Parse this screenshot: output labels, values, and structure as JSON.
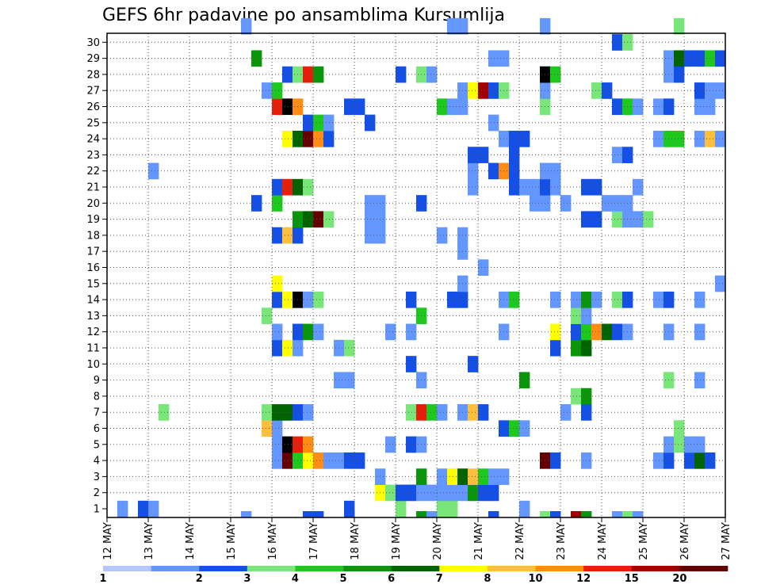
{
  "chart_data": {
    "type": "heatmap",
    "title": "GEFS 6hr padavine po ansamblima Kursumlija",
    "xlabel": "",
    "ylabel": "",
    "x_tick_labels": [
      "12 MAY",
      "13 MAY",
      "14 MAY",
      "15 MAY",
      "16 MAY",
      "17 MAY",
      "18 MAY",
      "19 MAY",
      "20 MAY",
      "21 MAY",
      "22 MAY",
      "23 MAY",
      "24 MAY",
      "25 MAY",
      "26 MAY",
      "27 MAY"
    ],
    "y_tick_labels": [
      "1",
      "2",
      "3",
      "4",
      "5",
      "6",
      "7",
      "8",
      "9",
      "10",
      "11",
      "12",
      "13",
      "14",
      "15",
      "16",
      "17",
      "18",
      "19",
      "20",
      "21",
      "22",
      "23",
      "24",
      "25",
      "26",
      "27",
      "28",
      "29",
      "30"
    ],
    "x_steps_per_day": 4,
    "xlim_steps": [
      0,
      60
    ],
    "ylim_members": [
      0,
      30
    ],
    "colorbar": {
      "levels": [
        "1",
        "2",
        "3",
        "4",
        "5",
        "6",
        "7",
        "8",
        "10",
        "12",
        "15",
        "20"
      ],
      "colors": [
        "#b4c8ff",
        "#6496ff",
        "#1450e6",
        "#78e678",
        "#1ec81e",
        "#0a960a",
        "#006400",
        "#ffff00",
        "#ffbe3c",
        "#ff8c14",
        "#e61e0a",
        "#a00000",
        "#640000"
      ]
    },
    "cells": [
      [
        1,
        0,
        1
      ],
      [
        3,
        0,
        2
      ],
      [
        4,
        0,
        1
      ],
      [
        23,
        0,
        2
      ],
      [
        28,
        0,
        3
      ],
      [
        32,
        0,
        3
      ],
      [
        33,
        0,
        3
      ],
      [
        40,
        0,
        1
      ],
      [
        26,
        1,
        7
      ],
      [
        27,
        1,
        3
      ],
      [
        28,
        1,
        2
      ],
      [
        29,
        1,
        2
      ],
      [
        30,
        1,
        1
      ],
      [
        31,
        1,
        1
      ],
      [
        32,
        1,
        1
      ],
      [
        33,
        1,
        1
      ],
      [
        34,
        1,
        1
      ],
      [
        35,
        1,
        5
      ],
      [
        36,
        1,
        2
      ],
      [
        37,
        1,
        2
      ],
      [
        26,
        2,
        1
      ],
      [
        30,
        2,
        5
      ],
      [
        32,
        2,
        1
      ],
      [
        33,
        2,
        7
      ],
      [
        34,
        2,
        6
      ],
      [
        35,
        2,
        8
      ],
      [
        36,
        2,
        4
      ],
      [
        37,
        2,
        1
      ],
      [
        38,
        2,
        1
      ],
      [
        16,
        3,
        1
      ],
      [
        17,
        3,
        12
      ],
      [
        18,
        3,
        4
      ],
      [
        19,
        3,
        7
      ],
      [
        20,
        3,
        9
      ],
      [
        21,
        3,
        1
      ],
      [
        22,
        3,
        1
      ],
      [
        23,
        3,
        2
      ],
      [
        24,
        3,
        2
      ],
      [
        42,
        3,
        12
      ],
      [
        43,
        3,
        2
      ],
      [
        46,
        3,
        1
      ],
      [
        53,
        3,
        1
      ],
      [
        54,
        3,
        2
      ],
      [
        56,
        3,
        2
      ],
      [
        57,
        3,
        6
      ],
      [
        58,
        3,
        2
      ],
      [
        16,
        4,
        1
      ],
      [
        17,
        4,
        13
      ],
      [
        18,
        4,
        10
      ],
      [
        19,
        4,
        9
      ],
      [
        27,
        4,
        1
      ],
      [
        29,
        4,
        2
      ],
      [
        30,
        4,
        1
      ],
      [
        54,
        4,
        1
      ],
      [
        55,
        4,
        3
      ],
      [
        56,
        4,
        1
      ],
      [
        57,
        4,
        1
      ],
      [
        15,
        5,
        8
      ],
      [
        16,
        5,
        1
      ],
      [
        38,
        5,
        2
      ],
      [
        39,
        5,
        4
      ],
      [
        40,
        5,
        1
      ],
      [
        55,
        5,
        3
      ],
      [
        5,
        6,
        3
      ],
      [
        15,
        6,
        3
      ],
      [
        16,
        6,
        6
      ],
      [
        17,
        6,
        6
      ],
      [
        18,
        6,
        2
      ],
      [
        19,
        6,
        1
      ],
      [
        29,
        6,
        3
      ],
      [
        30,
        6,
        10
      ],
      [
        31,
        6,
        4
      ],
      [
        32,
        6,
        1
      ],
      [
        34,
        6,
        1
      ],
      [
        35,
        6,
        8
      ],
      [
        36,
        6,
        2
      ],
      [
        44,
        6,
        1
      ],
      [
        46,
        6,
        2
      ],
      [
        45,
        7,
        3
      ],
      [
        46,
        7,
        5
      ],
      [
        22,
        8,
        1
      ],
      [
        23,
        8,
        1
      ],
      [
        30,
        8,
        1
      ],
      [
        40,
        8,
        5
      ],
      [
        54,
        8,
        3
      ],
      [
        57,
        8,
        1
      ],
      [
        29,
        9,
        2
      ],
      [
        35,
        9,
        2
      ],
      [
        16,
        10,
        2
      ],
      [
        17,
        10,
        7
      ],
      [
        18,
        10,
        1
      ],
      [
        22,
        10,
        1
      ],
      [
        23,
        10,
        3
      ],
      [
        43,
        10,
        2
      ],
      [
        45,
        10,
        5
      ],
      [
        46,
        10,
        6
      ],
      [
        16,
        11,
        1
      ],
      [
        18,
        11,
        2
      ],
      [
        19,
        11,
        5
      ],
      [
        20,
        11,
        1
      ],
      [
        27,
        11,
        1
      ],
      [
        29,
        11,
        1
      ],
      [
        38,
        11,
        1
      ],
      [
        43,
        11,
        7
      ],
      [
        45,
        11,
        2
      ],
      [
        46,
        11,
        4
      ],
      [
        47,
        11,
        9
      ],
      [
        48,
        11,
        6
      ],
      [
        49,
        11,
        2
      ],
      [
        50,
        11,
        1
      ],
      [
        54,
        11,
        1
      ],
      [
        57,
        11,
        1
      ],
      [
        15,
        12,
        3
      ],
      [
        30,
        12,
        4
      ],
      [
        45,
        12,
        3
      ],
      [
        46,
        12,
        1
      ],
      [
        16,
        13,
        2
      ],
      [
        17,
        13,
        7
      ],
      [
        18,
        13,
        13
      ],
      [
        19,
        13,
        1
      ],
      [
        20,
        13,
        3
      ],
      [
        29,
        13,
        2
      ],
      [
        33,
        13,
        2
      ],
      [
        34,
        13,
        2
      ],
      [
        38,
        13,
        1
      ],
      [
        39,
        13,
        4
      ],
      [
        43,
        13,
        1
      ],
      [
        45,
        13,
        1
      ],
      [
        46,
        13,
        5
      ],
      [
        47,
        13,
        1
      ],
      [
        49,
        13,
        3
      ],
      [
        50,
        13,
        2
      ],
      [
        53,
        13,
        1
      ],
      [
        54,
        13,
        2
      ],
      [
        57,
        13,
        1
      ],
      [
        16,
        14,
        7
      ],
      [
        34,
        14,
        1
      ],
      [
        59,
        14,
        1
      ],
      [
        36,
        15,
        1
      ],
      [
        34,
        16,
        1
      ],
      [
        16,
        17,
        2
      ],
      [
        17,
        17,
        8
      ],
      [
        18,
        17,
        2
      ],
      [
        25,
        17,
        1
      ],
      [
        26,
        17,
        1
      ],
      [
        32,
        17,
        1
      ],
      [
        34,
        17,
        1
      ],
      [
        18,
        18,
        5
      ],
      [
        19,
        18,
        6
      ],
      [
        20,
        18,
        12
      ],
      [
        21,
        18,
        3
      ],
      [
        25,
        18,
        1
      ],
      [
        26,
        18,
        1
      ],
      [
        46,
        18,
        2
      ],
      [
        47,
        18,
        2
      ],
      [
        49,
        18,
        3
      ],
      [
        50,
        18,
        1
      ],
      [
        51,
        18,
        1
      ],
      [
        52,
        18,
        3
      ],
      [
        14,
        19,
        2
      ],
      [
        16,
        19,
        4
      ],
      [
        25,
        19,
        1
      ],
      [
        26,
        19,
        1
      ],
      [
        30,
        19,
        2
      ],
      [
        41,
        19,
        1
      ],
      [
        42,
        19,
        1
      ],
      [
        44,
        19,
        1
      ],
      [
        48,
        19,
        1
      ],
      [
        49,
        19,
        1
      ],
      [
        50,
        19,
        1
      ],
      [
        16,
        20,
        2
      ],
      [
        17,
        20,
        10
      ],
      [
        18,
        20,
        6
      ],
      [
        19,
        20,
        3
      ],
      [
        35,
        20,
        1
      ],
      [
        39,
        20,
        2
      ],
      [
        40,
        20,
        1
      ],
      [
        41,
        20,
        1
      ],
      [
        42,
        20,
        2
      ],
      [
        43,
        20,
        1
      ],
      [
        46,
        20,
        2
      ],
      [
        47,
        20,
        2
      ],
      [
        51,
        20,
        1
      ],
      [
        4,
        21,
        1
      ],
      [
        35,
        21,
        1
      ],
      [
        37,
        21,
        2
      ],
      [
        38,
        21,
        9
      ],
      [
        39,
        21,
        2
      ],
      [
        42,
        21,
        1
      ],
      [
        43,
        21,
        1
      ],
      [
        35,
        22,
        2
      ],
      [
        36,
        22,
        2
      ],
      [
        39,
        22,
        2
      ],
      [
        49,
        22,
        1
      ],
      [
        50,
        22,
        2
      ],
      [
        17,
        23,
        7
      ],
      [
        18,
        23,
        6
      ],
      [
        19,
        23,
        12
      ],
      [
        20,
        23,
        9
      ],
      [
        21,
        23,
        2
      ],
      [
        38,
        23,
        1
      ],
      [
        39,
        23,
        2
      ],
      [
        40,
        23,
        2
      ],
      [
        53,
        23,
        1
      ],
      [
        54,
        23,
        4
      ],
      [
        55,
        23,
        4
      ],
      [
        57,
        23,
        1
      ],
      [
        58,
        23,
        8
      ],
      [
        59,
        23,
        1
      ],
      [
        19,
        24,
        2
      ],
      [
        20,
        24,
        4
      ],
      [
        21,
        24,
        1
      ],
      [
        25,
        24,
        2
      ],
      [
        37,
        24,
        1
      ],
      [
        16,
        25,
        10
      ],
      [
        17,
        25,
        13
      ],
      [
        18,
        25,
        9
      ],
      [
        23,
        25,
        2
      ],
      [
        24,
        25,
        2
      ],
      [
        32,
        25,
        4
      ],
      [
        33,
        25,
        1
      ],
      [
        34,
        25,
        1
      ],
      [
        42,
        25,
        3
      ],
      [
        49,
        25,
        2
      ],
      [
        50,
        25,
        4
      ],
      [
        51,
        25,
        1
      ],
      [
        53,
        25,
        1
      ],
      [
        54,
        25,
        2
      ],
      [
        57,
        25,
        1
      ],
      [
        58,
        25,
        1
      ],
      [
        15,
        26,
        1
      ],
      [
        16,
        26,
        4
      ],
      [
        34,
        26,
        1
      ],
      [
        35,
        26,
        7
      ],
      [
        36,
        26,
        11
      ],
      [
        37,
        26,
        2
      ],
      [
        38,
        26,
        3
      ],
      [
        42,
        26,
        1
      ],
      [
        47,
        26,
        3
      ],
      [
        48,
        26,
        2
      ],
      [
        57,
        26,
        2
      ],
      [
        58,
        26,
        1
      ],
      [
        59,
        26,
        1
      ],
      [
        17,
        27,
        2
      ],
      [
        18,
        27,
        3
      ],
      [
        19,
        27,
        10
      ],
      [
        20,
        27,
        5
      ],
      [
        28,
        27,
        2
      ],
      [
        30,
        27,
        3
      ],
      [
        31,
        27,
        1
      ],
      [
        42,
        27,
        13
      ],
      [
        43,
        27,
        4
      ],
      [
        54,
        27,
        1
      ],
      [
        55,
        27,
        2
      ],
      [
        14,
        28,
        5
      ],
      [
        37,
        28,
        1
      ],
      [
        38,
        28,
        1
      ],
      [
        54,
        28,
        1
      ],
      [
        55,
        28,
        6
      ],
      [
        56,
        28,
        2
      ],
      [
        57,
        28,
        2
      ],
      [
        58,
        28,
        4
      ],
      [
        59,
        28,
        2
      ],
      [
        49,
        29,
        2
      ],
      [
        50,
        29,
        3
      ],
      [
        13,
        30,
        1
      ],
      [
        33,
        30,
        1
      ],
      [
        34,
        30,
        1
      ],
      [
        42,
        30,
        1
      ],
      [
        55,
        30,
        3
      ]
    ],
    "edge_cells": [
      [
        13,
        1
      ],
      [
        19,
        2
      ],
      [
        20,
        2
      ],
      [
        23,
        2
      ],
      [
        30,
        5
      ],
      [
        31,
        1
      ],
      [
        37,
        2
      ],
      [
        42,
        3
      ],
      [
        43,
        2
      ],
      [
        45,
        11
      ],
      [
        46,
        5
      ],
      [
        49,
        1
      ],
      [
        50,
        3
      ],
      [
        51,
        1
      ]
    ]
  }
}
